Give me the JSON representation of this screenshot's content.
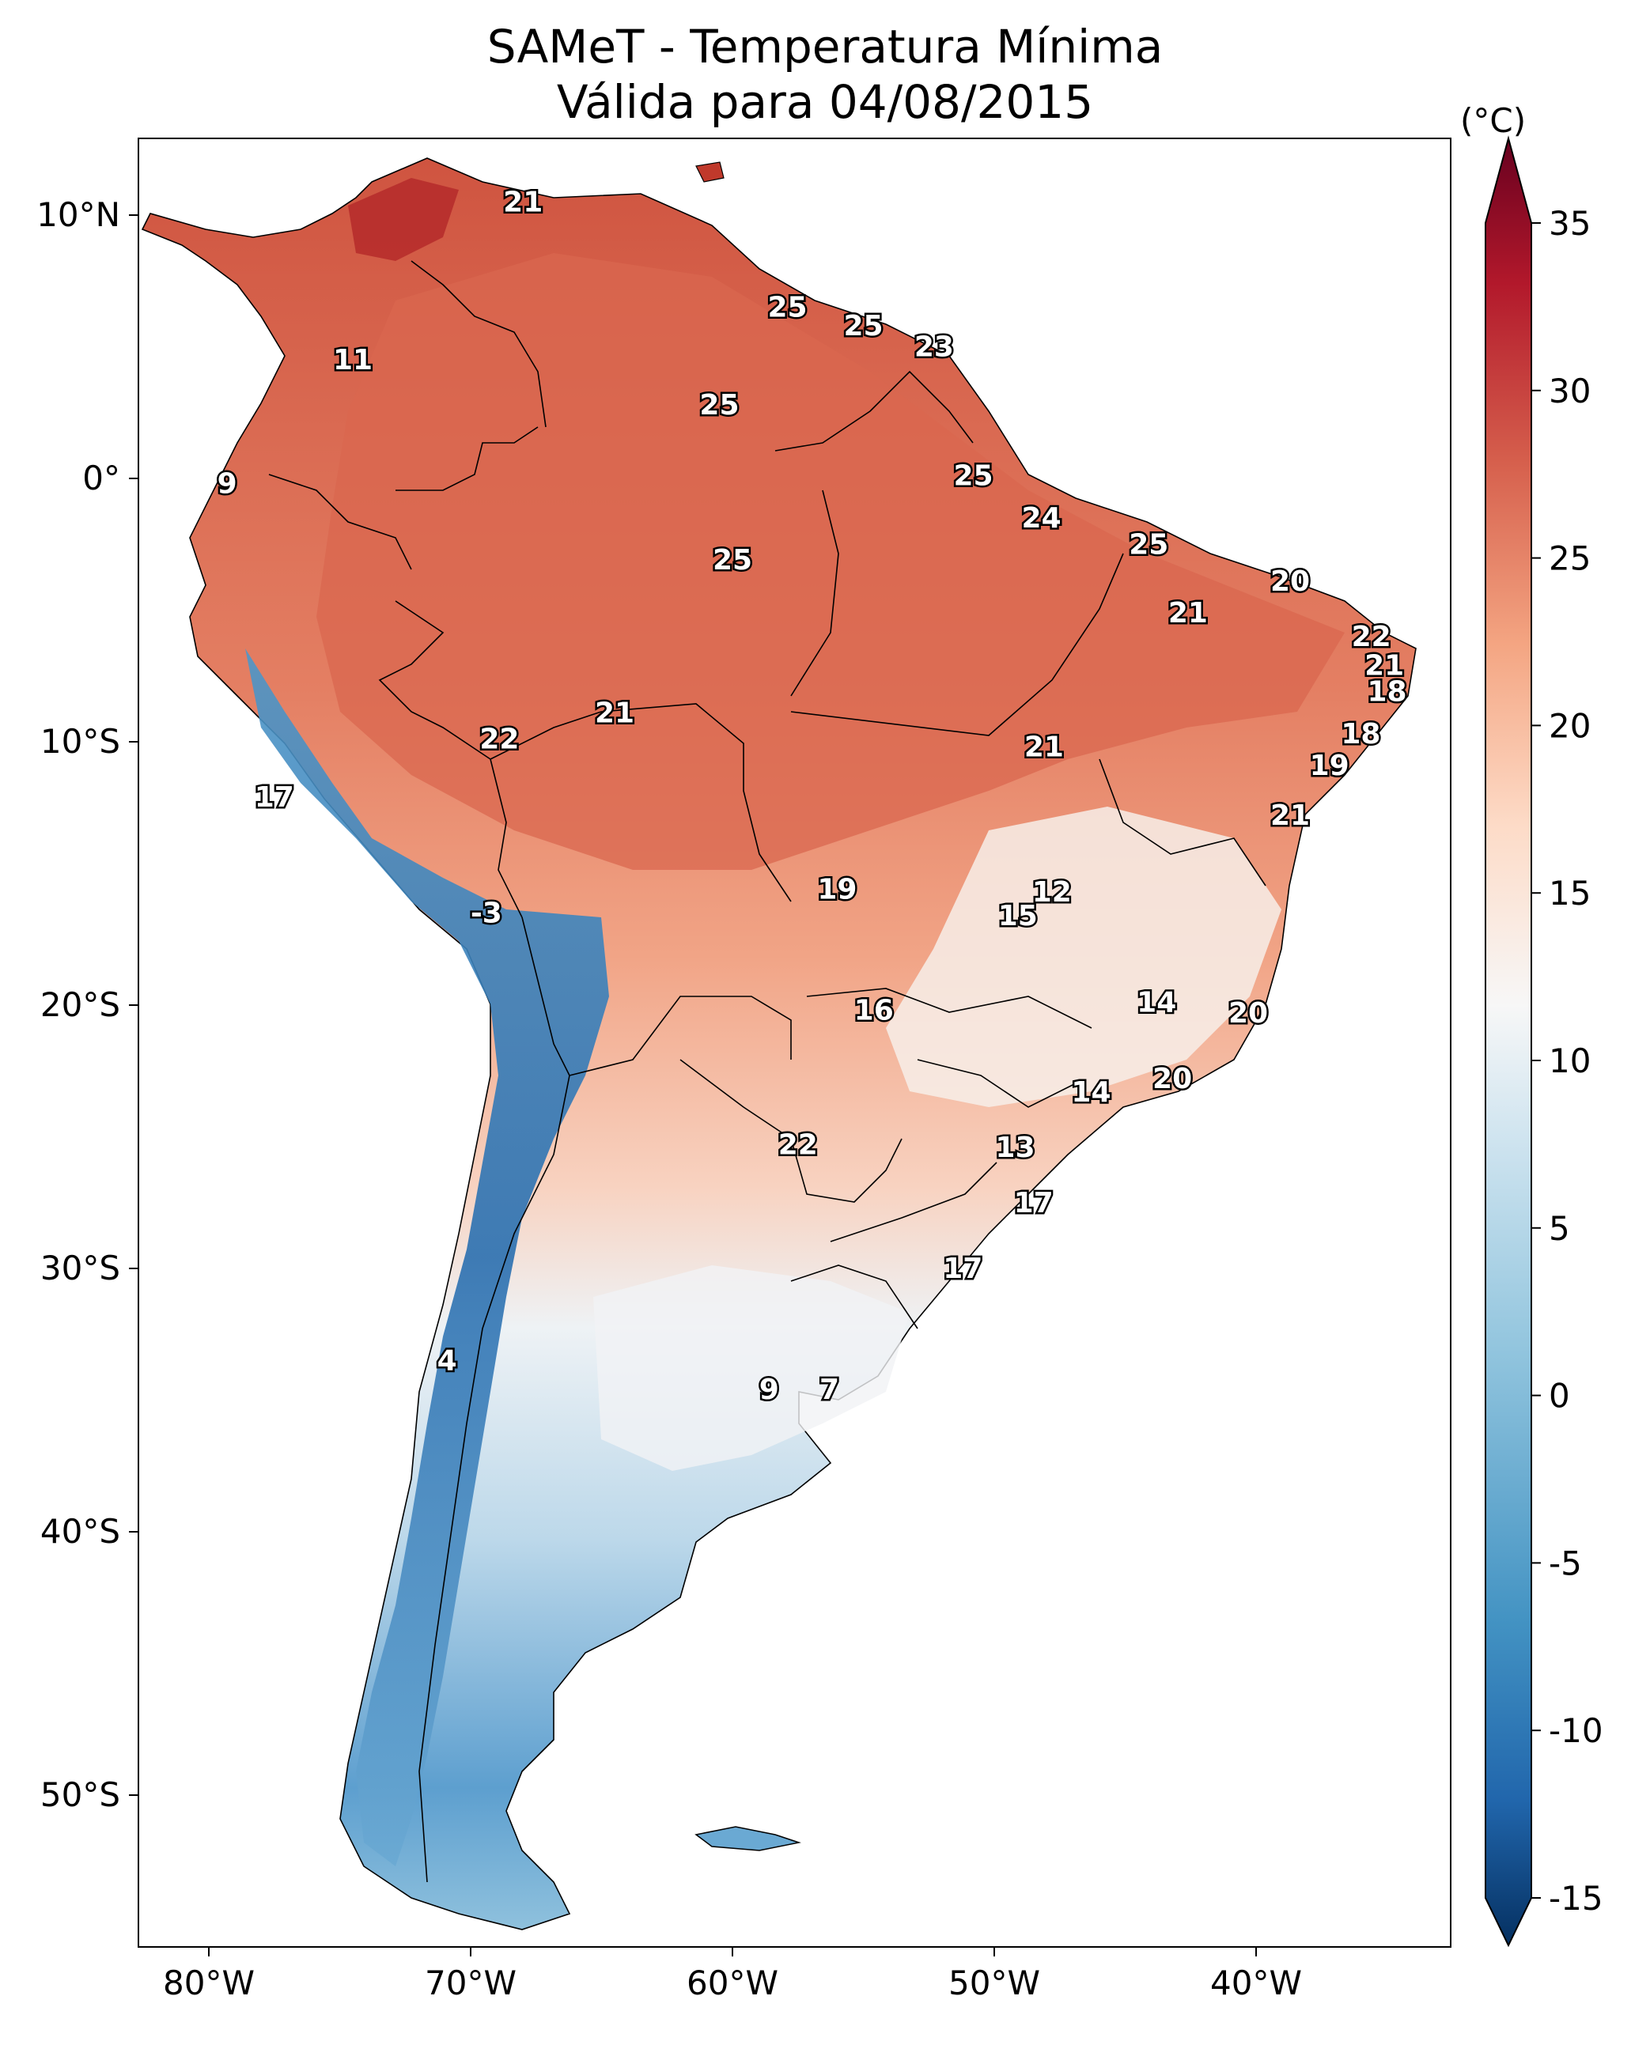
{
  "title": {
    "line1": "SAMeT - Temperatura Mínima",
    "line2": "Válida para 04/08/2015"
  },
  "axes": {
    "lon_ticks": [
      "80°W",
      "70°W",
      "60°W",
      "50°W",
      "40°W"
    ],
    "lat_ticks": [
      "10°N",
      "0°",
      "10°S",
      "20°S",
      "30°S",
      "40°S",
      "50°S"
    ]
  },
  "colorbar": {
    "unit": "(°C)",
    "ticks": [
      "35",
      "30",
      "25",
      "20",
      "15",
      "10",
      "5",
      "0",
      "-5",
      "-10",
      "-15"
    ],
    "colors": {
      "max": "#67001f",
      "hot": "#b2182b",
      "warm": "#d6604d",
      "mild": "#f4a582",
      "light": "#fddbc7",
      "neutral": "#f7f7f7",
      "cool": "#d1e5f0",
      "cold": "#92c5de",
      "colder": "#4393c3",
      "coldest": "#2166ac",
      "min": "#053061"
    }
  },
  "map_values": [
    {
      "v": "21",
      "lon": -68,
      "lat": 10.5
    },
    {
      "v": "11",
      "lon": -74.5,
      "lat": 4.5
    },
    {
      "v": "9",
      "lon": -79.3,
      "lat": -0.2
    },
    {
      "v": "25",
      "lon": -57.9,
      "lat": 6.5
    },
    {
      "v": "25",
      "lon": -55,
      "lat": 5.8
    },
    {
      "v": "23",
      "lon": -52.3,
      "lat": 5
    },
    {
      "v": "25",
      "lon": -60.5,
      "lat": 2.8
    },
    {
      "v": "25",
      "lon": -50.8,
      "lat": 0.1
    },
    {
      "v": "24",
      "lon": -48.2,
      "lat": -1.5
    },
    {
      "v": "25",
      "lon": -60,
      "lat": -3.1
    },
    {
      "v": "25",
      "lon": -44.1,
      "lat": -2.5
    },
    {
      "v": "20",
      "lon": -38.7,
      "lat": -3.9
    },
    {
      "v": "21",
      "lon": -42.6,
      "lat": -5.1
    },
    {
      "v": "22",
      "lon": -35.6,
      "lat": -6
    },
    {
      "v": "21",
      "lon": -35.1,
      "lat": -7.1
    },
    {
      "v": "18",
      "lon": -35,
      "lat": -8.1
    },
    {
      "v": "21",
      "lon": -64.5,
      "lat": -8.9
    },
    {
      "v": "22",
      "lon": -68.9,
      "lat": -9.9
    },
    {
      "v": "21",
      "lon": -48.1,
      "lat": -10.2
    },
    {
      "v": "18",
      "lon": -36,
      "lat": -9.7
    },
    {
      "v": "19",
      "lon": -37.2,
      "lat": -10.9
    },
    {
      "v": "17",
      "lon": -77.5,
      "lat": -12.1
    },
    {
      "v": "21",
      "lon": -38.7,
      "lat": -12.8
    },
    {
      "v": "19",
      "lon": -56,
      "lat": -15.6
    },
    {
      "v": "12",
      "lon": -47.8,
      "lat": -15.7
    },
    {
      "v": "15",
      "lon": -49.1,
      "lat": -16.6
    },
    {
      "v": "-3",
      "lon": -69.4,
      "lat": -16.5
    },
    {
      "v": "16",
      "lon": -54.6,
      "lat": -20.2
    },
    {
      "v": "14",
      "lon": -43.8,
      "lat": -19.9
    },
    {
      "v": "20",
      "lon": -40.3,
      "lat": -20.3
    },
    {
      "v": "14",
      "lon": -46.3,
      "lat": -23.3
    },
    {
      "v": "20",
      "lon": -43.2,
      "lat": -22.8
    },
    {
      "v": "13",
      "lon": -49.2,
      "lat": -25.4
    },
    {
      "v": "22",
      "lon": -57.5,
      "lat": -25.3
    },
    {
      "v": "17",
      "lon": -48.5,
      "lat": -27.5
    },
    {
      "v": "17",
      "lon": -51.2,
      "lat": -30
    },
    {
      "v": "4",
      "lon": -70.9,
      "lat": -33.5
    },
    {
      "v": "9",
      "lon": -58.6,
      "lat": -34.6
    },
    {
      "v": "7",
      "lon": -56.3,
      "lat": -34.6
    }
  ]
}
